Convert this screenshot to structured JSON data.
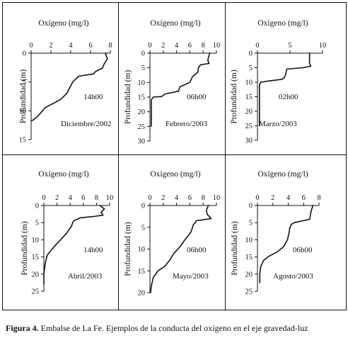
{
  "caption": {
    "label": "Figura 4.",
    "text": " Embalse de La Fe. Ejemplos de la conducta del oxígeno en el eje gravedad-luz"
  },
  "chart_data": [
    {
      "type": "line",
      "xlabel": "Oxígeno (mg/l)",
      "ylabel": "Profundidad (m)",
      "xlim": [
        0,
        8
      ],
      "xticks": [
        0,
        2,
        4,
        6,
        8
      ],
      "ylim": [
        0,
        15
      ],
      "yticks": [
        0,
        5,
        10,
        15
      ],
      "y_inverted": true,
      "annotations": [
        "14h00",
        "Diciembre/2002"
      ],
      "x": [
        7.5,
        7.7,
        7.4,
        7.2,
        6.5,
        6.3,
        4.8,
        4.2,
        3.9,
        3.6,
        3.0,
        2.5,
        1.9,
        1.4,
        0.9,
        0.5,
        0.2,
        0.0
      ],
      "y": [
        0,
        1.0,
        1.8,
        2.6,
        3.2,
        3.6,
        4.0,
        5.0,
        6.0,
        7.0,
        8.0,
        8.5,
        9.0,
        9.5,
        10.5,
        11.2,
        11.6,
        11.8
      ]
    },
    {
      "type": "line",
      "xlabel": "Oxígeno (mg/l)",
      "ylabel": "Profundidad (m)",
      "xlim": [
        0,
        10
      ],
      "xticks": [
        0,
        2,
        4,
        6,
        8,
        10
      ],
      "ylim": [
        0,
        30
      ],
      "yticks": [
        0,
        5,
        10,
        15,
        20,
        25,
        30
      ],
      "y_inverted": true,
      "annotations": [
        "06h00",
        "Febrero/2003"
      ],
      "x": [
        9.0,
        8.8,
        8.7,
        8.9,
        7.6,
        7.3,
        7.2,
        6.4,
        6.0,
        4.5,
        4.3,
        2.2,
        1.8,
        0.5,
        0.2,
        0.2
      ],
      "y": [
        0,
        1.5,
        2.5,
        3.5,
        4.0,
        5.0,
        6.5,
        8.0,
        10.0,
        11.5,
        13.0,
        14.0,
        14.8,
        15.0,
        16.0,
        25.0
      ]
    },
    {
      "type": "line",
      "xlabel": "Oxígeno (mg/l)",
      "ylabel": "Profundidad (m)",
      "xlim": [
        0,
        10
      ],
      "xticks": [
        0,
        5,
        10
      ],
      "ylim": [
        0,
        30
      ],
      "yticks": [
        0,
        5,
        10,
        15,
        20,
        25,
        30
      ],
      "y_inverted": true,
      "annotations": [
        "02h00",
        "Marzo/2003"
      ],
      "x": [
        8.0,
        8.0,
        8.0,
        8.2,
        7.0,
        4.5,
        4.3,
        4.1,
        3.8,
        2.0,
        0.5,
        0.3,
        0.3
      ],
      "y": [
        0,
        2.0,
        3.5,
        4.5,
        5.0,
        5.5,
        7.5,
        8.5,
        9.0,
        9.5,
        10.0,
        11.0,
        25.0
      ]
    },
    {
      "type": "line",
      "xlabel": "Oxígeno (mg/l)",
      "ylabel": "Profundidad (m)",
      "xlim": [
        0,
        10
      ],
      "xticks": [
        0,
        2,
        4,
        6,
        8,
        10
      ],
      "ylim": [
        0,
        25
      ],
      "yticks": [
        0,
        5,
        10,
        15,
        20,
        25
      ],
      "y_inverted": true,
      "annotations": [
        "14h00",
        "Abril/2003"
      ],
      "x": [
        8.5,
        9.2,
        8.7,
        9.0,
        7.6,
        5.5,
        4.5,
        4.2,
        3.5,
        2.8,
        2.3,
        1.8,
        1.2,
        0.5,
        0.2,
        0.0,
        0.0
      ],
      "y": [
        0,
        1.0,
        2.0,
        2.8,
        3.2,
        3.6,
        4.5,
        6.0,
        8.0,
        9.5,
        10.5,
        11.5,
        12.8,
        14.5,
        17.0,
        20.0,
        23.0
      ]
    },
    {
      "type": "line",
      "xlabel": "Oxígeno (mg/l)",
      "ylabel": "Profundidad (m)",
      "xlim": [
        0,
        10
      ],
      "xticks": [
        0,
        2,
        4,
        6,
        8,
        10
      ],
      "ylim": [
        0,
        20
      ],
      "yticks": [
        0,
        5,
        10,
        15,
        20
      ],
      "y_inverted": true,
      "annotations": [
        "06h00",
        "Mayo/2003"
      ],
      "x": [
        8.8,
        8.5,
        8.6,
        9.2,
        7.0,
        6.5,
        6.2,
        5.2,
        4.5,
        3.6,
        3.0,
        2.2,
        1.2,
        0.5,
        0.2,
        0.1
      ],
      "y": [
        0,
        1.0,
        2.0,
        3.0,
        3.5,
        4.5,
        6.0,
        8.0,
        9.5,
        11.0,
        12.5,
        14.0,
        15.0,
        16.5,
        18.5,
        20.0
      ]
    },
    {
      "type": "line",
      "xlabel": "Oxígeno (mg/l)",
      "ylabel": "Profundidad (m)",
      "xlim": [
        0,
        8
      ],
      "xticks": [
        0,
        2,
        4,
        6,
        8
      ],
      "ylim": [
        0,
        25
      ],
      "yticks": [
        0,
        5,
        10,
        15,
        20,
        25
      ],
      "y_inverted": true,
      "annotations": [
        "06h00",
        "Agosto/2003"
      ],
      "x": [
        7.2,
        7.0,
        6.9,
        6.8,
        4.8,
        4.4,
        4.2,
        4.1,
        3.9,
        3.4,
        2.6,
        1.5,
        0.8,
        0.4,
        0.3,
        0.3
      ],
      "y": [
        0,
        1.5,
        2.5,
        4.0,
        5.0,
        5.5,
        6.5,
        8.0,
        10.0,
        12.0,
        13.5,
        14.8,
        16.0,
        18.0,
        20.0,
        22.5
      ]
    }
  ]
}
